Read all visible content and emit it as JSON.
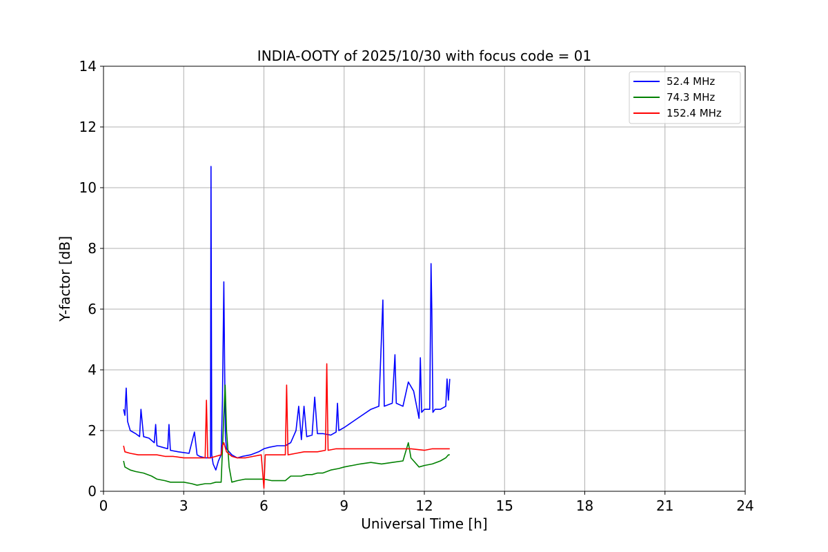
{
  "chart_data": {
    "type": "line",
    "title": "INDIA-OOTY of 2025/10/30 with focus code = 01",
    "xlabel": "Universal Time [h]",
    "ylabel": "Y-factor [dB]",
    "xlim": [
      0,
      24
    ],
    "ylim": [
      0,
      14
    ],
    "xticks": [
      0,
      3,
      6,
      9,
      12,
      15,
      18,
      21,
      24
    ],
    "yticks": [
      0,
      2,
      4,
      6,
      8,
      10,
      12,
      14
    ],
    "xtick_labels": [
      "0",
      "3",
      "6",
      "9",
      "12",
      "15",
      "18",
      "21",
      "24"
    ],
    "ytick_labels": [
      "0",
      "2",
      "4",
      "6",
      "8",
      "10",
      "12",
      "14"
    ],
    "grid": true,
    "legend": "top-right",
    "series": [
      {
        "name": " 52.4 MHz",
        "color": "#0000ff",
        "x": [
          0.75,
          0.8,
          0.85,
          0.9,
          1.0,
          1.2,
          1.35,
          1.4,
          1.5,
          1.7,
          1.9,
          1.95,
          2.0,
          2.2,
          2.4,
          2.45,
          2.5,
          2.8,
          3.2,
          3.4,
          3.5,
          3.6,
          3.8,
          4.0,
          4.02,
          4.05,
          4.1,
          4.2,
          4.3,
          4.4,
          4.45,
          4.5,
          4.53,
          4.56,
          4.6,
          4.7,
          4.8,
          5.0,
          5.2,
          5.5,
          5.8,
          6.0,
          6.2,
          6.5,
          6.8,
          7.0,
          7.2,
          7.3,
          7.4,
          7.5,
          7.6,
          7.8,
          7.9,
          8.0,
          8.2,
          8.5,
          8.7,
          8.75,
          8.8,
          9.0,
          9.5,
          10.0,
          10.3,
          10.45,
          10.5,
          10.8,
          10.9,
          10.95,
          11.2,
          11.4,
          11.6,
          11.8,
          11.85,
          11.9,
          12.0,
          12.2,
          12.25,
          12.28,
          12.32,
          12.4,
          12.6,
          12.8,
          12.85,
          12.9,
          12.95
        ],
        "values": [
          2.7,
          2.5,
          3.4,
          2.3,
          2.0,
          1.9,
          1.8,
          2.7,
          1.8,
          1.75,
          1.6,
          2.2,
          1.5,
          1.45,
          1.4,
          2.2,
          1.35,
          1.3,
          1.25,
          1.95,
          1.2,
          1.15,
          1.1,
          1.1,
          10.7,
          1.2,
          0.9,
          0.7,
          1.0,
          1.2,
          3.0,
          6.9,
          4.2,
          1.8,
          1.4,
          1.3,
          1.2,
          1.1,
          1.15,
          1.2,
          1.3,
          1.4,
          1.45,
          1.5,
          1.5,
          1.6,
          2.0,
          2.8,
          1.7,
          2.8,
          1.8,
          1.85,
          3.1,
          1.9,
          1.9,
          1.85,
          1.95,
          2.9,
          2.0,
          2.1,
          2.4,
          2.7,
          2.8,
          6.3,
          2.8,
          2.9,
          4.5,
          2.9,
          2.8,
          3.6,
          3.3,
          2.4,
          4.4,
          2.6,
          2.7,
          2.7,
          7.5,
          6.0,
          2.6,
          2.7,
          2.7,
          2.8,
          3.7,
          3.0,
          3.7
        ]
      },
      {
        "name": " 74.3 MHz",
        "color": "#008000",
        "x": [
          0.75,
          0.8,
          1.0,
          1.2,
          1.5,
          1.8,
          2.0,
          2.3,
          2.5,
          2.8,
          3.0,
          3.3,
          3.5,
          3.8,
          4.0,
          4.2,
          4.4,
          4.5,
          4.55,
          4.6,
          4.7,
          4.8,
          5.0,
          5.3,
          5.6,
          6.0,
          6.3,
          6.6,
          6.8,
          7.0,
          7.2,
          7.4,
          7.6,
          7.8,
          8.0,
          8.2,
          8.5,
          8.8,
          9.0,
          9.3,
          9.6,
          10.0,
          10.4,
          10.8,
          11.2,
          11.4,
          11.5,
          11.6,
          11.8,
          12.0,
          12.3,
          12.6,
          12.8,
          12.9,
          12.95
        ],
        "values": [
          1.0,
          0.8,
          0.7,
          0.65,
          0.6,
          0.5,
          0.4,
          0.35,
          0.3,
          0.3,
          0.3,
          0.25,
          0.2,
          0.25,
          0.25,
          0.3,
          0.3,
          2.5,
          3.5,
          2.0,
          0.8,
          0.3,
          0.35,
          0.4,
          0.4,
          0.4,
          0.35,
          0.35,
          0.35,
          0.5,
          0.5,
          0.5,
          0.55,
          0.55,
          0.6,
          0.6,
          0.7,
          0.75,
          0.8,
          0.85,
          0.9,
          0.95,
          0.9,
          0.95,
          1.0,
          1.6,
          1.1,
          1.0,
          0.8,
          0.85,
          0.9,
          1.0,
          1.1,
          1.2,
          1.2
        ]
      },
      {
        "name": " 152.4 MHz",
        "color": "#ff0000",
        "x": [
          0.75,
          0.8,
          1.0,
          1.3,
          1.6,
          2.0,
          2.3,
          2.6,
          3.0,
          3.3,
          3.6,
          3.8,
          3.85,
          3.9,
          4.0,
          4.2,
          4.4,
          4.45,
          4.5,
          4.6,
          4.8,
          5.0,
          5.3,
          5.6,
          5.9,
          6.0,
          6.05,
          6.2,
          6.5,
          6.8,
          6.85,
          6.9,
          7.2,
          7.5,
          7.8,
          8.0,
          8.3,
          8.35,
          8.4,
          8.7,
          9.0,
          9.5,
          10.0,
          10.5,
          11.0,
          11.5,
          12.0,
          12.3,
          12.5,
          12.8,
          12.95
        ],
        "values": [
          1.5,
          1.3,
          1.25,
          1.2,
          1.2,
          1.2,
          1.15,
          1.15,
          1.1,
          1.1,
          1.1,
          1.1,
          3.0,
          1.1,
          1.1,
          1.15,
          1.2,
          1.5,
          1.6,
          1.3,
          1.15,
          1.1,
          1.1,
          1.15,
          1.2,
          0.1,
          1.2,
          1.2,
          1.2,
          1.2,
          3.5,
          1.2,
          1.25,
          1.3,
          1.3,
          1.3,
          1.35,
          4.2,
          1.35,
          1.4,
          1.4,
          1.4,
          1.4,
          1.4,
          1.4,
          1.4,
          1.35,
          1.4,
          1.4,
          1.4,
          1.4
        ]
      }
    ]
  }
}
